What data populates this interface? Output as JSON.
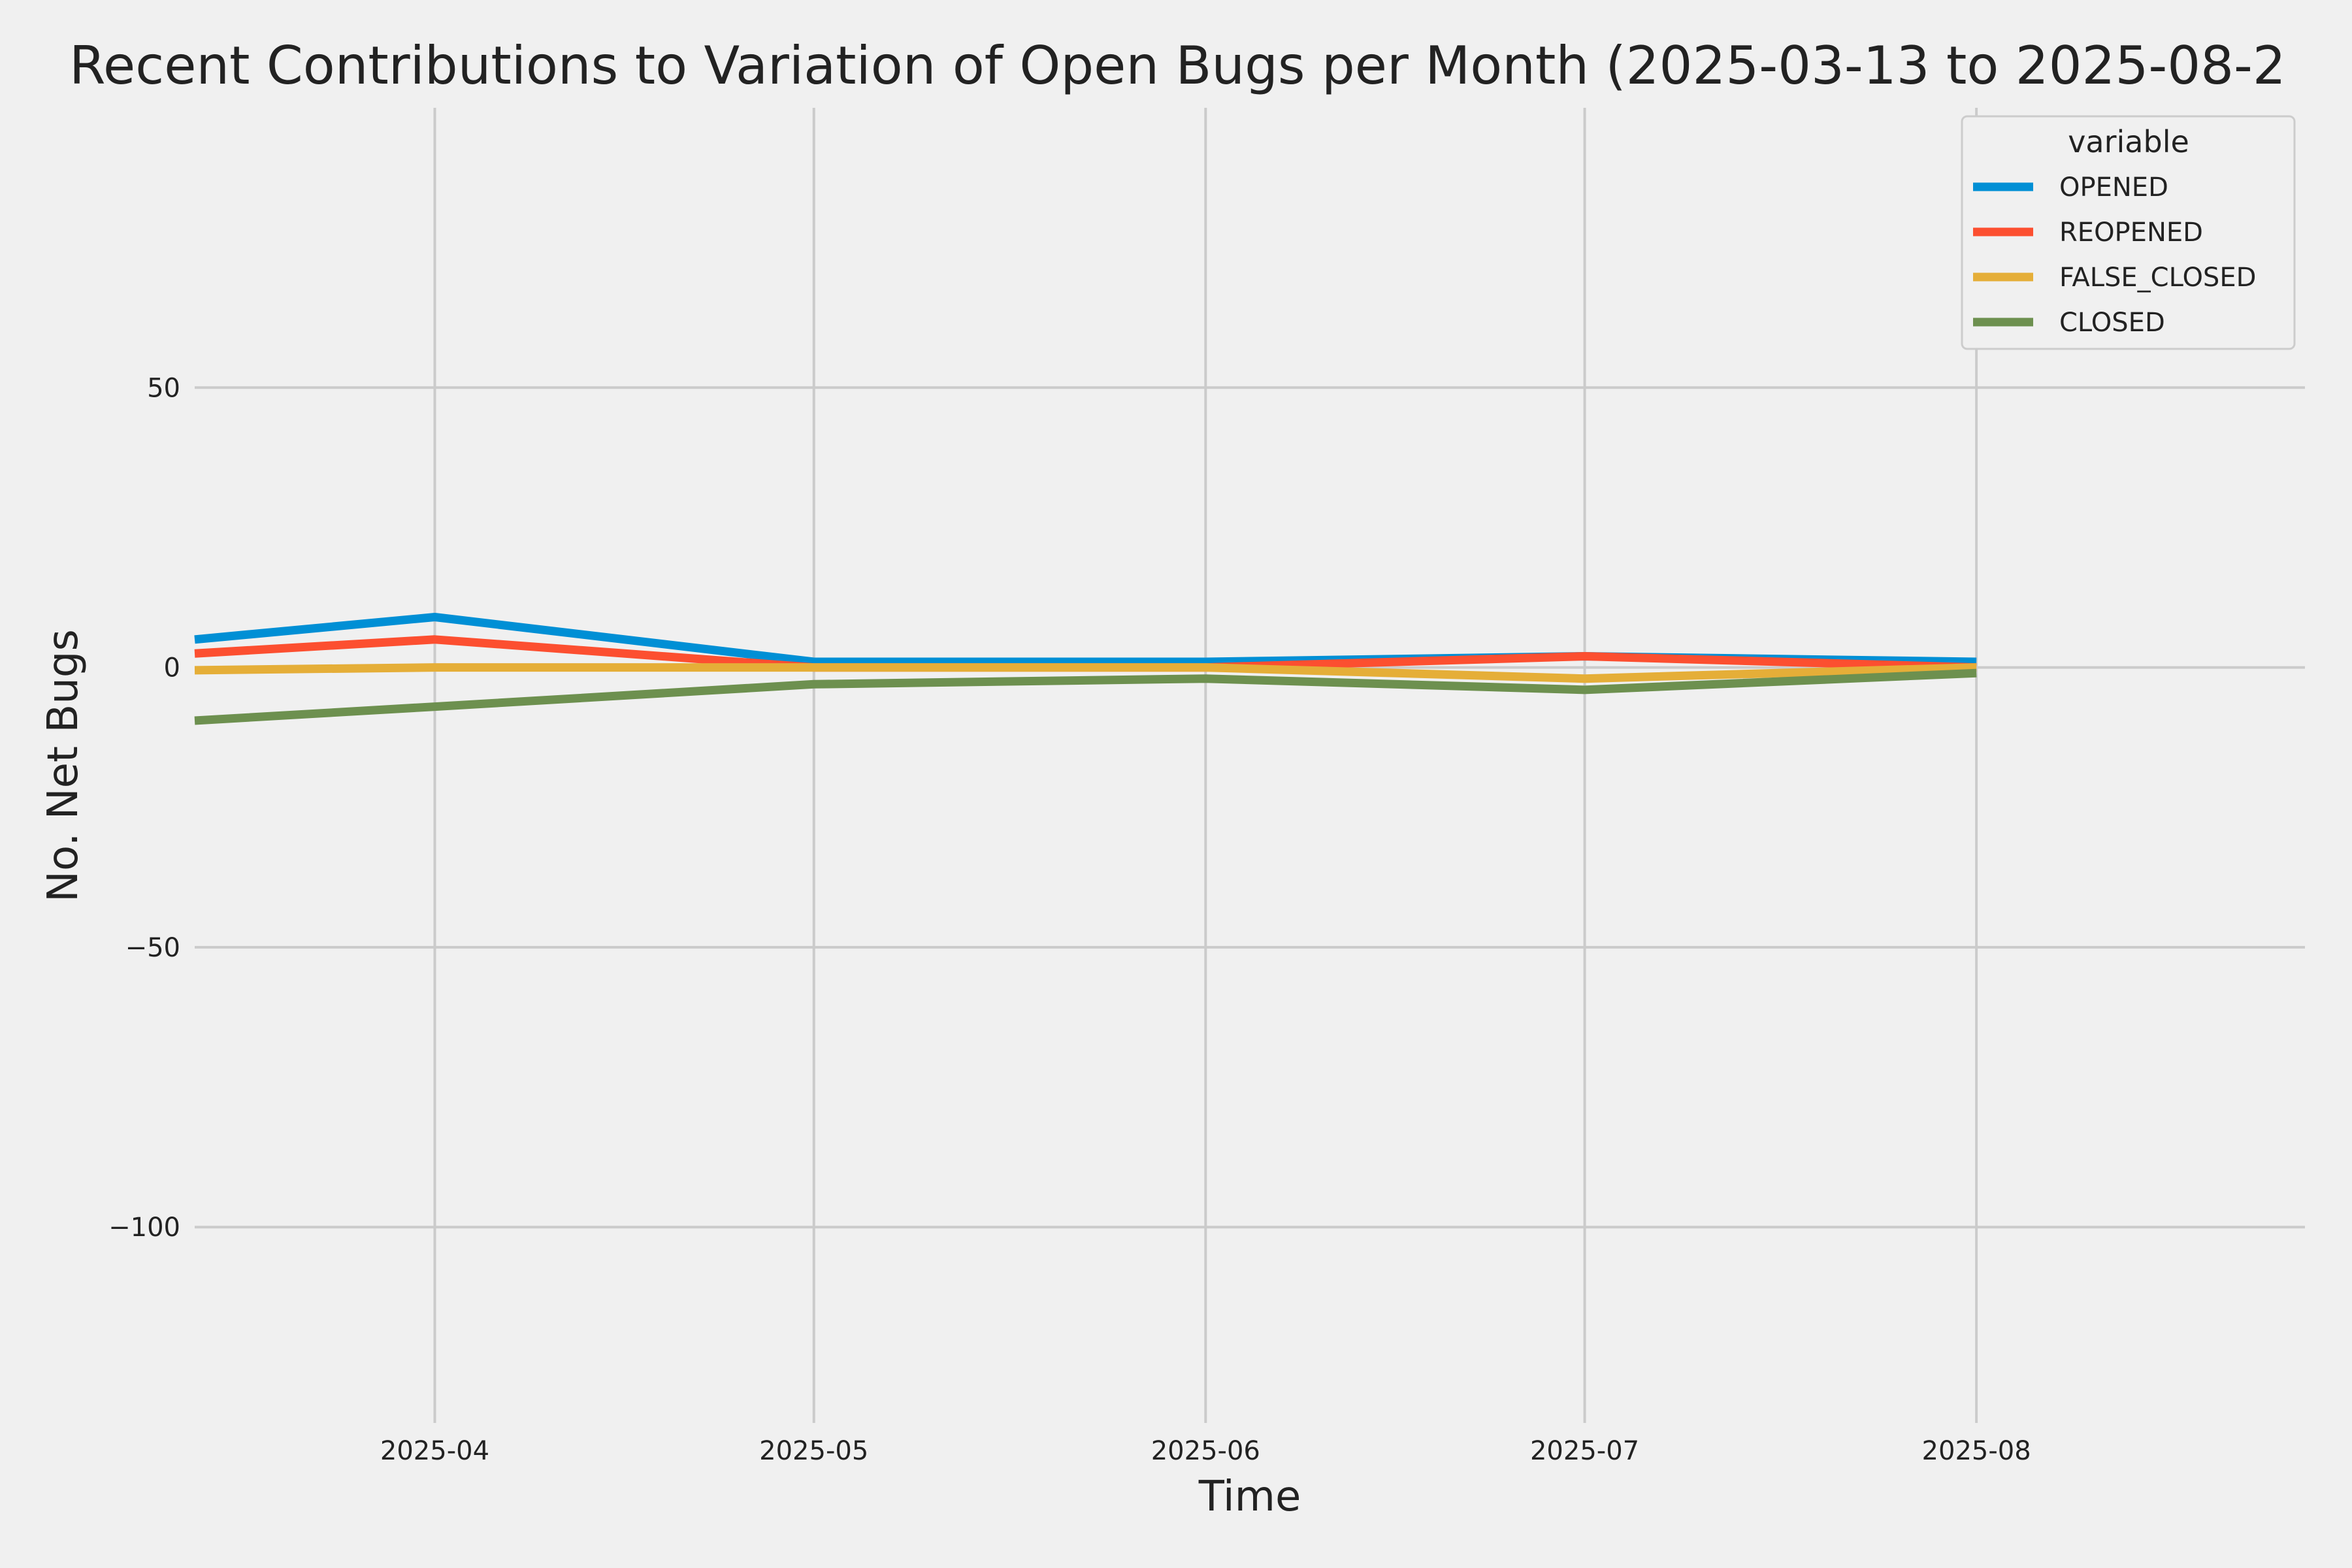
{
  "chart_data": {
    "type": "line",
    "title": "Recent Contributions to Variation of Open Bugs per Month (2025-03-13 to 2025-08-2",
    "xlabel": "Time",
    "ylabel": "No. Net Bugs",
    "x": [
      "2025-03-13",
      "2025-04-01",
      "2025-05-01",
      "2025-06-01",
      "2025-07-01",
      "2025-08-01"
    ],
    "xlim": [
      "2025-03-13",
      "2025-08-27"
    ],
    "xticks": [
      "2025-04-01",
      "2025-05-01",
      "2025-06-01",
      "2025-07-01",
      "2025-08-01"
    ],
    "xtick_labels": [
      "2025-04",
      "2025-05",
      "2025-06",
      "2025-07",
      "2025-08"
    ],
    "ylim": [
      -135,
      100
    ],
    "yticks": [
      50,
      0,
      -50,
      -100
    ],
    "ytick_labels": [
      "50",
      "0",
      "−50",
      "−100"
    ],
    "grid": true,
    "legend": {
      "title": "variable",
      "position": "top-right"
    },
    "series": [
      {
        "name": "OPENED",
        "color": "#008fd5",
        "values": [
          5,
          9,
          1,
          1,
          2,
          1
        ]
      },
      {
        "name": "REOPENED",
        "color": "#fc4f30",
        "values": [
          2.5,
          5,
          0,
          0,
          2,
          0
        ]
      },
      {
        "name": "FALSE_CLOSED",
        "color": "#e5ae38",
        "values": [
          -0.5,
          0,
          0,
          0,
          -2,
          0
        ]
      },
      {
        "name": "CLOSED",
        "color": "#6d904f",
        "values": [
          -9.5,
          -7,
          -3,
          -2,
          -4,
          -1
        ]
      }
    ]
  }
}
